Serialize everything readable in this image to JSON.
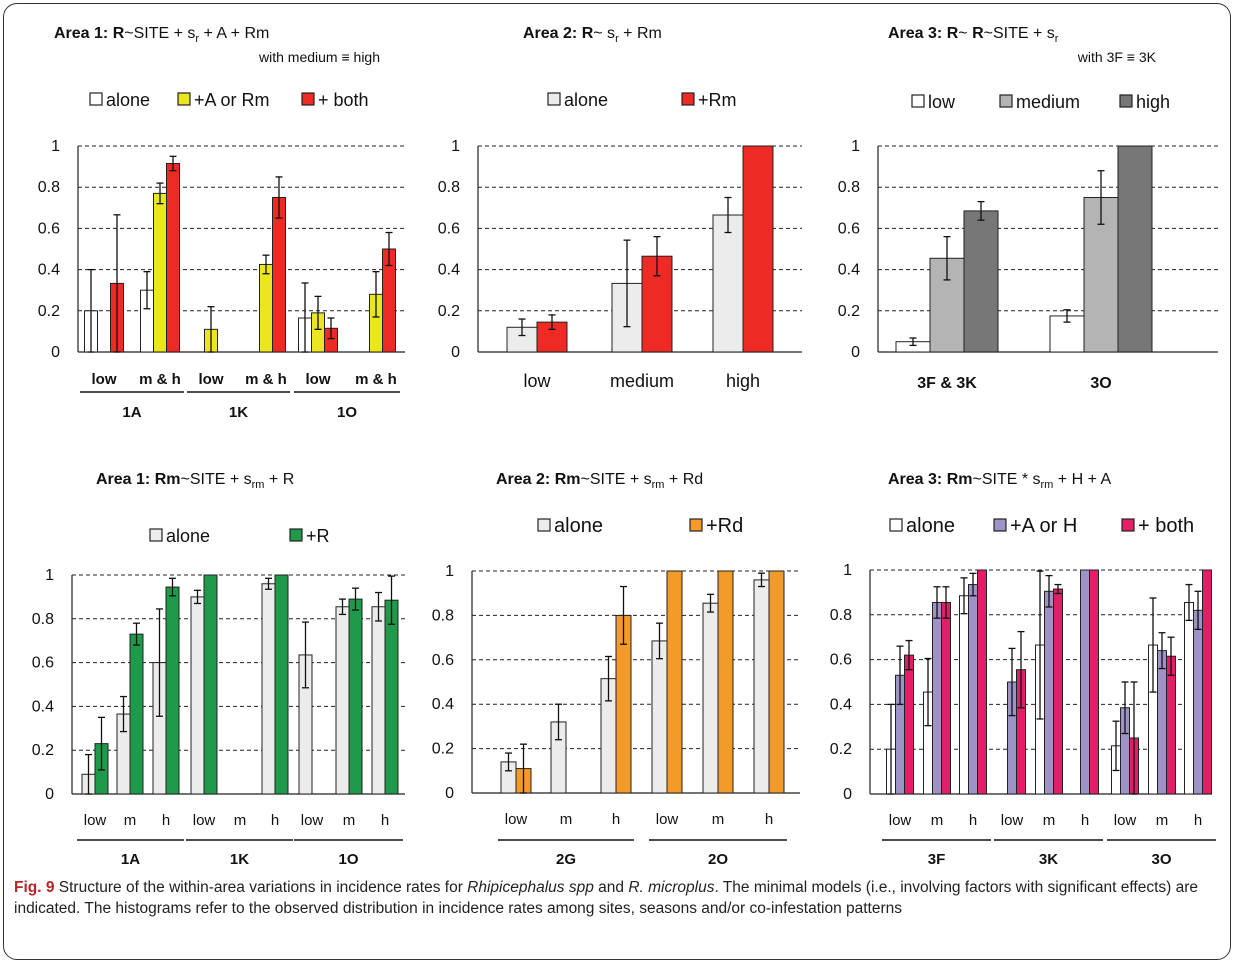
{
  "caption": {
    "fig_label": "Fig. 9",
    "text_before": " Structure of the within-area variations in incidence rates for ",
    "species1": "Rhipicephalus spp",
    "text_mid": " and ",
    "species2": "R. microplus",
    "text_after": ". The minimal models (i.e., involving factors with significant effects) are indicated. The histograms refer to the observed distribution in incidence rates among sites, seasons and/or co-infestation patterns"
  },
  "colors": {
    "white": "#ffffff",
    "lightgray": "#ececec",
    "midgray": "#b4b4b4",
    "darkgray": "#777777",
    "yellow": "#ebe620",
    "red": "#ed2a24",
    "green": "#1f9a4a",
    "orange": "#f39b2a",
    "purple": "#9d93c6",
    "pink": "#e21f66"
  },
  "chart_data": [
    {
      "id": "p1",
      "type": "bar",
      "title": [
        "Area 1: ",
        "R",
        "~SITE + s",
        "r",
        " + A + Rm"
      ],
      "subtitle": "with medium ≡ high",
      "ylim": [
        0,
        1
      ],
      "yticks": [
        "0",
        "0.2",
        "0.4",
        "0.6",
        "0.8",
        "1"
      ],
      "legend": [
        {
          "name": "alone",
          "color": "white"
        },
        {
          "name": "+A or Rm",
          "color": "yellow"
        },
        {
          "name": "+ both",
          "color": "red"
        }
      ],
      "groups": [
        {
          "label": "low",
          "bars": [
            {
              "v": 0.2,
              "e": 0.2,
              "c": "white"
            },
            null,
            {
              "v": 0.333,
              "e": 0.333,
              "c": "red"
            }
          ]
        },
        {
          "label": "m & h",
          "bars": [
            {
              "v": 0.3,
              "e": 0.09,
              "c": "white"
            },
            {
              "v": 0.77,
              "e": 0.05,
              "c": "yellow"
            },
            {
              "v": 0.915,
              "e": 0.035,
              "c": "red"
            }
          ]
        },
        {
          "label": "low",
          "bars": [
            null,
            {
              "v": 0.11,
              "e": 0.11,
              "c": "yellow"
            },
            null
          ]
        },
        {
          "label": "m & h",
          "bars": [
            null,
            {
              "v": 0.425,
              "e": 0.045,
              "c": "yellow"
            },
            {
              "v": 0.75,
              "e": 0.1,
              "c": "red"
            }
          ]
        },
        {
          "label": "low",
          "bars": [
            {
              "v": 0.165,
              "e": 0.17,
              "c": "white"
            },
            {
              "v": 0.19,
              "e": 0.08,
              "c": "yellow"
            },
            {
              "v": 0.115,
              "e": 0.05,
              "c": "red"
            }
          ]
        },
        {
          "label": "m & h",
          "bars": [
            null,
            {
              "v": 0.28,
              "e": 0.11,
              "c": "yellow"
            },
            {
              "v": 0.5,
              "e": 0.08,
              "c": "red"
            }
          ]
        }
      ],
      "sites": [
        {
          "label": "1A",
          "span": [
            0,
            1
          ]
        },
        {
          "label": "1K",
          "span": [
            2,
            3
          ]
        },
        {
          "label": "1O",
          "span": [
            4,
            5
          ]
        }
      ]
    },
    {
      "id": "p2",
      "type": "bar",
      "title": [
        "Area 2: ",
        "R",
        "~ s",
        "r",
        " + Rm"
      ],
      "subtitle": "",
      "ylim": [
        0,
        1
      ],
      "yticks": [
        "0",
        "0.2",
        "0.4",
        "0.6",
        "0.8",
        "1"
      ],
      "legend": [
        {
          "name": "alone",
          "color": "lightgray"
        },
        {
          "name": "+Rm",
          "color": "red"
        }
      ],
      "groups": [
        {
          "label": "low",
          "bars": [
            {
              "v": 0.12,
              "e": 0.04,
              "c": "lightgray"
            },
            {
              "v": 0.145,
              "e": 0.035,
              "c": "red"
            }
          ]
        },
        {
          "label": "medium",
          "bars": [
            {
              "v": 0.333,
              "e": 0.21,
              "c": "lightgray"
            },
            {
              "v": 0.465,
              "e": 0.095,
              "c": "red"
            }
          ]
        },
        {
          "label": "high",
          "bars": [
            {
              "v": 0.665,
              "e": 0.085,
              "c": "lightgray"
            },
            {
              "v": 1.0,
              "e": 0,
              "c": "red"
            }
          ]
        }
      ],
      "sites": []
    },
    {
      "id": "p3",
      "type": "bar",
      "title": [
        "Area 3: ",
        "R",
        "~ ",
        "R",
        "~SITE + s",
        "r"
      ],
      "subtitle": "with 3F ≡ 3K",
      "ylim": [
        0,
        1
      ],
      "yticks": [
        "0",
        "0.2",
        "0.4",
        "0.6",
        "0.8",
        "1"
      ],
      "legend": [
        {
          "name": "low",
          "color": "white"
        },
        {
          "name": "medium",
          "color": "midgray"
        },
        {
          "name": "high",
          "color": "darkgray"
        }
      ],
      "groups": [
        {
          "label": "3F  &  3K",
          "bars": [
            {
              "v": 0.05,
              "e": 0.018,
              "c": "white"
            },
            {
              "v": 0.455,
              "e": 0.105,
              "c": "midgray"
            },
            {
              "v": 0.685,
              "e": 0.045,
              "c": "darkgray"
            }
          ]
        },
        {
          "label": "3O",
          "bars": [
            {
              "v": 0.175,
              "e": 0.03,
              "c": "white"
            },
            {
              "v": 0.75,
              "e": 0.13,
              "c": "midgray"
            },
            {
              "v": 1.0,
              "e": 0,
              "c": "darkgray"
            }
          ]
        }
      ],
      "sites": []
    },
    {
      "id": "p4",
      "type": "bar",
      "title": [
        "Area 1: ",
        "Rm",
        "~SITE + s",
        "rm",
        " + R"
      ],
      "subtitle": "",
      "ylim": [
        0,
        1
      ],
      "yticks": [
        "0",
        "0.2",
        "0.4",
        "0.6",
        "0.8",
        "1"
      ],
      "legend": [
        {
          "name": "alone",
          "color": "lightgray"
        },
        {
          "name": "+R",
          "color": "green"
        }
      ],
      "groups": [
        {
          "label": "low",
          "bars": [
            {
              "v": 0.09,
              "e": 0.09,
              "c": "lightgray"
            },
            {
              "v": 0.23,
              "e": 0.12,
              "c": "green"
            }
          ]
        },
        {
          "label": "m",
          "bars": [
            {
              "v": 0.365,
              "e": 0.08,
              "c": "lightgray"
            },
            {
              "v": 0.73,
              "e": 0.05,
              "c": "green"
            }
          ]
        },
        {
          "label": "h",
          "bars": [
            {
              "v": 0.6,
              "e": 0.245,
              "c": "lightgray"
            },
            {
              "v": 0.945,
              "e": 0.04,
              "c": "green"
            }
          ]
        },
        {
          "label": "low",
          "bars": [
            {
              "v": 0.9,
              "e": 0.03,
              "c": "lightgray"
            },
            {
              "v": 1.0,
              "e": 0,
              "c": "green"
            }
          ]
        },
        {
          "label": "m",
          "bars": [
            null,
            null
          ]
        },
        {
          "label": "h",
          "bars": [
            {
              "v": 0.96,
              "e": 0.025,
              "c": "lightgray"
            },
            {
              "v": 1.0,
              "e": 0,
              "c": "green"
            }
          ]
        },
        {
          "label": "low",
          "bars": [
            {
              "v": 0.635,
              "e": 0.15,
              "c": "lightgray"
            },
            null
          ]
        },
        {
          "label": "m",
          "bars": [
            {
              "v": 0.855,
              "e": 0.035,
              "c": "lightgray"
            },
            {
              "v": 0.89,
              "e": 0.05,
              "c": "green"
            }
          ]
        },
        {
          "label": "h",
          "bars": [
            {
              "v": 0.855,
              "e": 0.065,
              "c": "lightgray"
            },
            {
              "v": 0.885,
              "e": 0.11,
              "c": "green"
            }
          ]
        }
      ],
      "sites": [
        {
          "label": "1A",
          "span": [
            0,
            2
          ]
        },
        {
          "label": "1K",
          "span": [
            3,
            5
          ]
        },
        {
          "label": "1O",
          "span": [
            6,
            8
          ]
        }
      ]
    },
    {
      "id": "p5",
      "type": "bar",
      "title": [
        "Area 2: ",
        "Rm",
        "~SITE + s",
        "rm",
        " + Rd"
      ],
      "subtitle": "",
      "ylim": [
        0,
        1
      ],
      "yticks": [
        "0",
        "0.2",
        "0.4",
        "0.6",
        "0.8",
        "1"
      ],
      "legend": [
        {
          "name": "alone",
          "color": "lightgray"
        },
        {
          "name": "+Rd",
          "color": "orange"
        }
      ],
      "groups": [
        {
          "label": "low",
          "bars": [
            {
              "v": 0.14,
              "e": 0.04,
              "c": "lightgray"
            },
            {
              "v": 0.11,
              "e": 0.11,
              "c": "orange"
            }
          ]
        },
        {
          "label": "m",
          "bars": [
            {
              "v": 0.32,
              "e": 0.08,
              "c": "lightgray"
            },
            null
          ]
        },
        {
          "label": "h",
          "bars": [
            {
              "v": 0.515,
              "e": 0.1,
              "c": "lightgray"
            },
            {
              "v": 0.8,
              "e": 0.13,
              "c": "orange"
            }
          ]
        },
        {
          "label": "low",
          "bars": [
            {
              "v": 0.685,
              "e": 0.08,
              "c": "lightgray"
            },
            {
              "v": 1.0,
              "e": 0,
              "c": "orange"
            }
          ]
        },
        {
          "label": "m",
          "bars": [
            {
              "v": 0.855,
              "e": 0.04,
              "c": "lightgray"
            },
            {
              "v": 1.0,
              "e": 0,
              "c": "orange"
            }
          ]
        },
        {
          "label": "h",
          "bars": [
            {
              "v": 0.96,
              "e": 0.03,
              "c": "lightgray"
            },
            {
              "v": 1.0,
              "e": 0,
              "c": "orange"
            }
          ]
        }
      ],
      "sites": [
        {
          "label": "2G",
          "span": [
            0,
            2
          ]
        },
        {
          "label": "2O",
          "span": [
            3,
            5
          ]
        }
      ]
    },
    {
      "id": "p6",
      "type": "bar",
      "title": [
        "Area 3: ",
        "Rm",
        "~SITE * s",
        "rm",
        " + H + A"
      ],
      "subtitle": "",
      "ylim": [
        0,
        1
      ],
      "yticks": [
        "0",
        "0.2",
        "0.4",
        "0.6",
        "0.8",
        "1"
      ],
      "legend": [
        {
          "name": "alone",
          "color": "white"
        },
        {
          "name": "+A or H",
          "color": "purple"
        },
        {
          "name": "+ both",
          "color": "pink"
        }
      ],
      "groups": [
        {
          "label": "low",
          "bars": [
            {
              "v": 0.2,
              "e": 0.2,
              "c": "white"
            },
            {
              "v": 0.53,
              "e": 0.13,
              "c": "purple"
            },
            {
              "v": 0.62,
              "e": 0.065,
              "c": "pink"
            }
          ]
        },
        {
          "label": "m",
          "bars": [
            {
              "v": 0.455,
              "e": 0.15,
              "c": "white"
            },
            {
              "v": 0.855,
              "e": 0.07,
              "c": "purple"
            },
            {
              "v": 0.855,
              "e": 0.07,
              "c": "pink"
            }
          ]
        },
        {
          "label": "h",
          "bars": [
            {
              "v": 0.885,
              "e": 0.08,
              "c": "white"
            },
            {
              "v": 0.935,
              "e": 0.05,
              "c": "purple"
            },
            {
              "v": 1.0,
              "e": 0,
              "c": "pink"
            }
          ]
        },
        {
          "label": "low",
          "bars": [
            null,
            {
              "v": 0.5,
              "e": 0.15,
              "c": "purple"
            },
            {
              "v": 0.555,
              "e": 0.17,
              "c": "pink"
            }
          ]
        },
        {
          "label": "m",
          "bars": [
            {
              "v": 0.665,
              "e": 0.33,
              "c": "white"
            },
            {
              "v": 0.905,
              "e": 0.07,
              "c": "purple"
            },
            {
              "v": 0.915,
              "e": 0.02,
              "c": "pink"
            }
          ]
        },
        {
          "label": "h",
          "bars": [
            null,
            {
              "v": 1.0,
              "e": 0,
              "c": "purple"
            },
            {
              "v": 1.0,
              "e": 0,
              "c": "pink"
            }
          ]
        },
        {
          "label": "low",
          "bars": [
            {
              "v": 0.215,
              "e": 0.11,
              "c": "white"
            },
            {
              "v": 0.385,
              "e": 0.115,
              "c": "purple"
            },
            {
              "v": 0.25,
              "e": 0.25,
              "c": "pink"
            }
          ]
        },
        {
          "label": "m",
          "bars": [
            {
              "v": 0.665,
              "e": 0.21,
              "c": "white"
            },
            {
              "v": 0.64,
              "e": 0.08,
              "c": "purple"
            },
            {
              "v": 0.615,
              "e": 0.085,
              "c": "pink"
            }
          ]
        },
        {
          "label": "h",
          "bars": [
            {
              "v": 0.855,
              "e": 0.08,
              "c": "white"
            },
            {
              "v": 0.82,
              "e": 0.085,
              "c": "purple"
            },
            {
              "v": 1.0,
              "e": 0,
              "c": "pink"
            }
          ]
        }
      ],
      "sites": [
        {
          "label": "3F",
          "span": [
            0,
            2
          ]
        },
        {
          "label": "3K",
          "span": [
            3,
            5
          ]
        },
        {
          "label": "3O",
          "span": [
            6,
            8
          ]
        }
      ]
    }
  ]
}
